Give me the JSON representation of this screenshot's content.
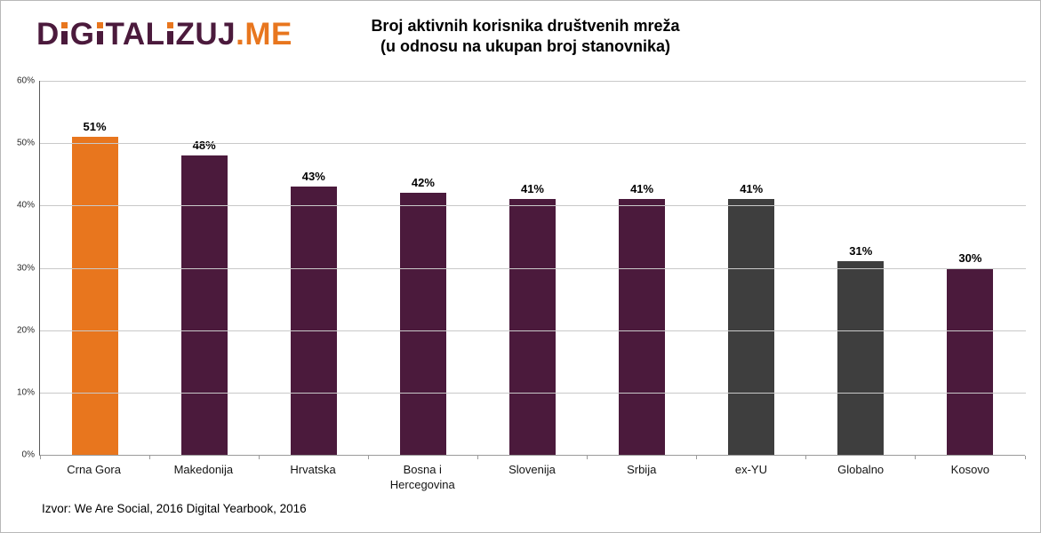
{
  "logo": {
    "text": "DIGITALIZUJ.ME",
    "accent_suffix": ".ME",
    "purple": "#4B1A3C",
    "orange": "#E8761E"
  },
  "title": {
    "line1": "Broj aktivnih korisnika društvenih mreža",
    "line2": "(u odnosu na ukupan broj stanovnika)"
  },
  "source": "Izvor: We Are Social, 2016 Digital Yearbook, 2016",
  "chart_data": {
    "type": "bar",
    "title": "Broj aktivnih korisnika društvenih mreža (u odnosu na ukupan broj stanovnika)",
    "xlabel": "",
    "ylabel": "",
    "categories": [
      "Crna Gora",
      "Makedonija",
      "Hrvatska",
      "Bosna i Hercegovina",
      "Slovenija",
      "Srbija",
      "ex-YU",
      "Globalno",
      "Kosovo"
    ],
    "values": [
      51,
      48,
      43,
      42,
      41,
      41,
      41,
      31,
      30
    ],
    "value_labels": [
      "51%",
      "48%",
      "43%",
      "42%",
      "41%",
      "41%",
      "41%",
      "31%",
      "30%"
    ],
    "bar_colors": [
      "#E8761E",
      "#4B1A3C",
      "#4B1A3C",
      "#4B1A3C",
      "#4B1A3C",
      "#4B1A3C",
      "#3E3E3E",
      "#3E3E3E",
      "#4B1A3C"
    ],
    "color_legend": {
      "highlight_crna_gora": "#E8761E",
      "country_purple": "#4B1A3C",
      "aggregate_gray": "#3E3E3E"
    },
    "ylim": [
      0,
      60
    ],
    "ytick_labels": [
      "0%",
      "10%",
      "20%",
      "30%",
      "40%",
      "50%",
      "60%"
    ],
    "ytick_values": [
      0,
      10,
      20,
      30,
      40,
      50,
      60
    ],
    "grid": true,
    "legend": false
  }
}
